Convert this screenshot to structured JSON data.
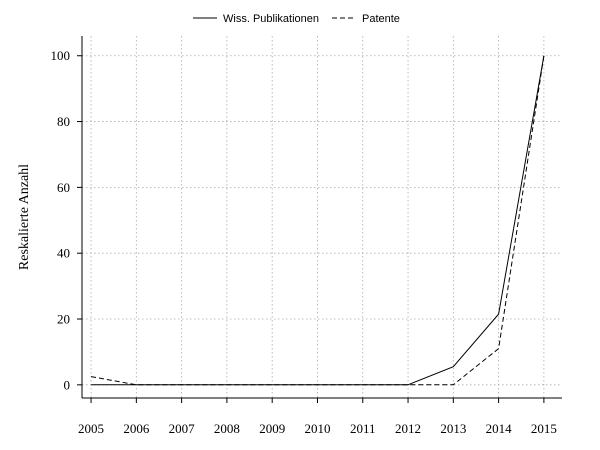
{
  "chart_data": {
    "type": "line",
    "x": [
      2005,
      2006,
      2007,
      2008,
      2009,
      2010,
      2011,
      2012,
      2013,
      2014,
      2015
    ],
    "series": [
      {
        "name": "Wiss. Publikationen",
        "style": "solid",
        "values": [
          0,
          0,
          0,
          0,
          0,
          0,
          0,
          0,
          5.5,
          21.5,
          100
        ]
      },
      {
        "name": "Patente",
        "style": "dashed",
        "values": [
          2.5,
          0,
          0,
          0,
          0,
          0,
          0,
          0,
          0,
          11,
          100
        ]
      }
    ],
    "ylabel": "Reskalierte Anzahl",
    "xlabel": "",
    "title": "",
    "xlim": [
      2004.8,
      2015.4
    ],
    "ylim": [
      -4,
      106
    ],
    "yticks": [
      0,
      20,
      40,
      60,
      80,
      100
    ],
    "xticks": [
      2005,
      2006,
      2007,
      2008,
      2009,
      2010,
      2011,
      2012,
      2013,
      2014,
      2015
    ],
    "grid": true,
    "legend": "top-center",
    "colors": {
      "line": "#000000",
      "grid": "#aaaaaa"
    }
  }
}
